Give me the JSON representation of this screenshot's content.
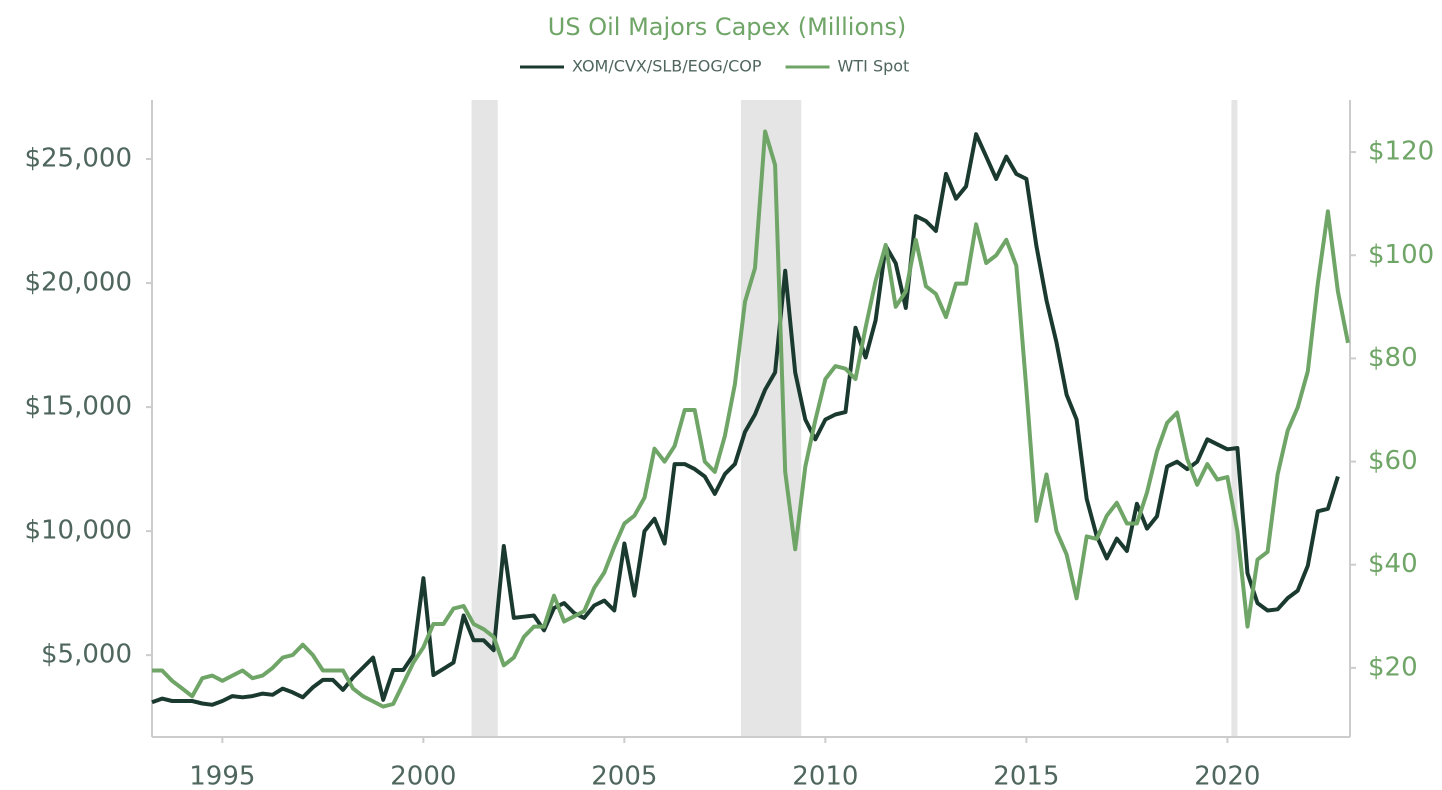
{
  "chart_data": {
    "type": "line",
    "title": "US Oil Majors Capex (Millions)",
    "x": [
      1993.25,
      1993.5,
      1993.75,
      1994,
      1994.25,
      1994.5,
      1994.75,
      1995,
      1995.25,
      1995.5,
      1995.75,
      1996,
      1996.25,
      1996.5,
      1996.75,
      1997,
      1997.25,
      1997.5,
      1997.75,
      1998,
      1998.25,
      1998.5,
      1998.75,
      1999,
      1999.25,
      1999.5,
      1999.75,
      2000,
      2000.25,
      2000.5,
      2000.75,
      2001,
      2001.25,
      2001.5,
      2001.75,
      2002,
      2002.25,
      2002.5,
      2002.75,
      2003,
      2003.25,
      2003.5,
      2003.75,
      2004,
      2004.25,
      2004.5,
      2004.75,
      2005,
      2005.25,
      2005.5,
      2005.75,
      2006,
      2006.25,
      2006.5,
      2006.75,
      2007,
      2007.25,
      2007.5,
      2007.75,
      2008,
      2008.25,
      2008.5,
      2008.75,
      2009,
      2009.25,
      2009.5,
      2009.75,
      2010,
      2010.25,
      2010.5,
      2010.75,
      2011,
      2011.25,
      2011.5,
      2011.75,
      2012,
      2012.25,
      2012.5,
      2012.75,
      2013,
      2013.25,
      2013.5,
      2013.75,
      2014,
      2014.25,
      2014.5,
      2014.75,
      2015,
      2015.25,
      2015.5,
      2015.75,
      2016,
      2016.25,
      2016.5,
      2016.75,
      2017,
      2017.25,
      2017.5,
      2017.75,
      2018,
      2018.25,
      2018.5,
      2018.75,
      2019,
      2019.25,
      2019.5,
      2019.75,
      2020,
      2020.25,
      2020.5,
      2020.75,
      2021,
      2021.25,
      2021.5,
      2021.75,
      2022,
      2022.25,
      2022.5,
      2022.75,
      2023
    ],
    "series": [
      {
        "name": "XOM/CVX/SLB/EOG/COP",
        "color": "#1b3a2f",
        "axis": "y",
        "values": [
          3100,
          3250,
          3150,
          3150,
          3150,
          3050,
          3000,
          3150,
          3350,
          3300,
          3350,
          3450,
          3400,
          3650,
          3500,
          3300,
          3700,
          4000,
          4000,
          3600,
          4100,
          4500,
          4900,
          3200,
          4400,
          4400,
          5000,
          8100,
          4200,
          4450,
          4700,
          6600,
          5600,
          5600,
          5200,
          9400,
          6500,
          6550,
          6600,
          6000,
          6900,
          7100,
          6700,
          6500,
          7000,
          7200,
          6800,
          9500,
          7400,
          10000,
          10500,
          9500,
          12700,
          12700,
          12500,
          12200,
          11500,
          12300,
          12700,
          14000,
          14700,
          15700,
          16400,
          20500,
          16400,
          14500,
          13700,
          14500,
          14700,
          14800,
          18200,
          17000,
          18500,
          21500,
          20800,
          19000,
          22700,
          22500,
          22100,
          24400,
          23400,
          23900,
          26000,
          25100,
          24200,
          25100,
          24400,
          24200,
          21500,
          19300,
          17600,
          15500,
          14500,
          11300,
          9800,
          8900,
          9700,
          9200,
          11100,
          10100,
          10600,
          12600,
          12800,
          12500,
          12800,
          13700,
          13500,
          13300,
          13350,
          8300,
          7100,
          6800,
          6850,
          7300,
          7600,
          8600,
          10800,
          10900,
          12200,
          null
        ]
      },
      {
        "name": "WTI Spot",
        "color": "#6fa567",
        "axis": "y2",
        "values": [
          19.5,
          19.5,
          17.5,
          16,
          14.5,
          18,
          18.5,
          17.5,
          18.5,
          19.5,
          18,
          18.5,
          20,
          22,
          22.5,
          24.5,
          22.5,
          19.5,
          19.5,
          19.5,
          16,
          14.5,
          13.5,
          12.5,
          13,
          17,
          21,
          24,
          28.5,
          28.5,
          31.5,
          32,
          28.5,
          27.5,
          26,
          20.5,
          22,
          26,
          28,
          28,
          34,
          29,
          30,
          31,
          35.5,
          38.5,
          43.5,
          48,
          49.5,
          53,
          62.5,
          60,
          63,
          70,
          70,
          60,
          58,
          65,
          75,
          91,
          97.5,
          124,
          117.5,
          58,
          43,
          59,
          68,
          76,
          78.5,
          78,
          76,
          86,
          95,
          102,
          90,
          93,
          103,
          94,
          92.5,
          88,
          94.5,
          94.5,
          106,
          98.5,
          100,
          103,
          98,
          74,
          48.5,
          57.5,
          46.5,
          42,
          33.5,
          45.5,
          45,
          49.5,
          52,
          48,
          48,
          54,
          62,
          67.5,
          69.5,
          60.5,
          55.5,
          59.5,
          56.5,
          57,
          46.5,
          28,
          41,
          42.5,
          57.5,
          66,
          70.5,
          77.5,
          94.5,
          108.5,
          93,
          83
        ]
      }
    ],
    "xlim": [
      1993.25,
      2023.05
    ],
    "xticks": [
      1995,
      2000,
      2005,
      2010,
      2015,
      2020
    ],
    "ylim": [
      1700,
      27380
    ],
    "yticks": [
      {
        "value": 5000,
        "label": "$5,000"
      },
      {
        "value": 10000,
        "label": "$10,000"
      },
      {
        "value": 15000,
        "label": "$15,000"
      },
      {
        "value": 20000,
        "label": "$20,000"
      },
      {
        "value": 25000,
        "label": "$25,000"
      }
    ],
    "y2lim": [
      6.6,
      130.1
    ],
    "y2ticks": [
      {
        "value": 20,
        "label": "$20"
      },
      {
        "value": 40,
        "label": "$40"
      },
      {
        "value": 60,
        "label": "$60"
      },
      {
        "value": 80,
        "label": "$80"
      },
      {
        "value": 100,
        "label": "$100"
      },
      {
        "value": 120,
        "label": "$120"
      }
    ],
    "shaded_periods": [
      [
        2001.2,
        2001.85
      ],
      [
        2007.9,
        2009.4
      ],
      [
        2020.1,
        2020.25
      ]
    ],
    "legend": "top"
  }
}
